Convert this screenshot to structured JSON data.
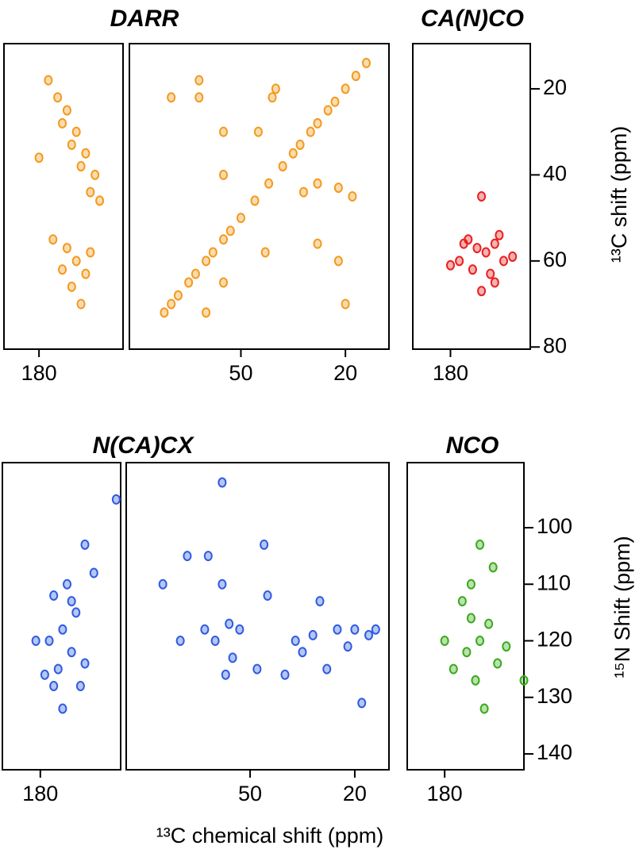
{
  "figure": {
    "xlabel": "¹³C chemical shift (ppm)",
    "ylabel_top": "¹³C shift (ppm)",
    "ylabel_bottom": "¹⁵N Shift (ppm)"
  },
  "chart_data": [
    {
      "type": "scatter",
      "title": "DARR",
      "color": "#f39a1e",
      "xlim": [
        187.5,
        162
      ],
      "ylim": [
        9.5,
        80.5
      ],
      "xticks": [
        180
      ],
      "x": [
        178,
        176,
        174,
        172,
        170,
        168,
        175,
        173,
        171,
        169,
        177,
        174,
        172,
        170,
        173,
        171,
        175,
        169,
        180,
        167
      ],
      "y": [
        18,
        22,
        25,
        30,
        35,
        40,
        28,
        33,
        38,
        44,
        55,
        57,
        60,
        63,
        66,
        70,
        62,
        58,
        36,
        46
      ]
    },
    {
      "type": "scatter",
      "color": "#f39a1e",
      "xlim": [
        82,
        7.5
      ],
      "ylim": [
        9.5,
        80.5
      ],
      "xticks": [
        50,
        20
      ],
      "x": [
        14,
        17,
        20,
        23,
        25,
        28,
        30,
        33,
        35,
        38,
        42,
        46,
        50,
        53,
        55,
        58,
        60,
        63,
        65,
        68,
        70,
        72,
        70,
        62,
        62,
        55,
        55,
        45,
        41,
        28,
        22,
        20,
        32,
        22,
        18,
        55,
        60,
        43,
        28,
        40
      ],
      "y": [
        14,
        17,
        20,
        23,
        25,
        28,
        30,
        33,
        35,
        38,
        42,
        46,
        50,
        53,
        55,
        58,
        60,
        63,
        65,
        68,
        70,
        72,
        22,
        22,
        18,
        30,
        40,
        30,
        22,
        56,
        60,
        70,
        44,
        43,
        45,
        65,
        72,
        58,
        42,
        20
      ]
    },
    {
      "type": "scatter",
      "title": "CA(N)CO",
      "color": "#e82020",
      "xlim": [
        188.5,
        162
      ],
      "ylim": [
        9.5,
        80.5
      ],
      "xticks": [
        180
      ],
      "yticks": [
        20,
        40,
        60,
        80
      ],
      "x": [
        173,
        176,
        174,
        172,
        170,
        168,
        178,
        175,
        171,
        173,
        169,
        166,
        180,
        177,
        170
      ],
      "y": [
        45,
        55,
        57,
        58,
        56,
        60,
        60,
        62,
        63,
        67,
        54,
        59,
        61,
        56,
        65
      ]
    },
    {
      "type": "scatter",
      "title": "N(CA)CX",
      "color": "#2f5be0",
      "xlim": [
        188.5,
        162
      ],
      "ylim": [
        88.5,
        142.8
      ],
      "xticks": [
        180
      ],
      "x": [
        170,
        174,
        177,
        172,
        175,
        178,
        173,
        170,
        176,
        179,
        171,
        175,
        181,
        168,
        173,
        177,
        163
      ],
      "y": [
        103,
        110,
        112,
        115,
        118,
        120,
        122,
        124,
        125,
        126,
        128,
        132,
        120,
        108,
        113,
        128,
        95
      ]
    },
    {
      "type": "scatter",
      "color": "#2f5be0",
      "xlim": [
        85.5,
        10.2
      ],
      "ylim": [
        88.5,
        142.8
      ],
      "xticks": [
        50,
        20
      ],
      "x": [
        62,
        58,
        56,
        60,
        55,
        53,
        57,
        63,
        75,
        68,
        46,
        45,
        40,
        32,
        30,
        25,
        22,
        20,
        16,
        14,
        35,
        28,
        18,
        58,
        70,
        48,
        37
      ],
      "y": [
        105,
        110,
        117,
        120,
        123,
        118,
        126,
        118,
        110,
        105,
        103,
        112,
        126,
        119,
        113,
        118,
        121,
        118,
        119,
        118,
        122,
        125,
        131,
        92,
        120,
        125,
        120
      ]
    },
    {
      "type": "scatter",
      "title": "NCO",
      "color": "#3aaa1a",
      "xlim": [
        188.5,
        162
      ],
      "ylim": [
        88.5,
        142.8
      ],
      "xticks": [
        180
      ],
      "yticks": [
        100,
        110,
        120,
        130,
        140
      ],
      "x": [
        172,
        169,
        174,
        176,
        170,
        172,
        175,
        168,
        173,
        171,
        180,
        178,
        166,
        174,
        162
      ],
      "y": [
        103,
        107,
        110,
        113,
        117,
        120,
        122,
        124,
        127,
        132,
        120,
        125,
        121,
        116,
        127
      ]
    }
  ]
}
